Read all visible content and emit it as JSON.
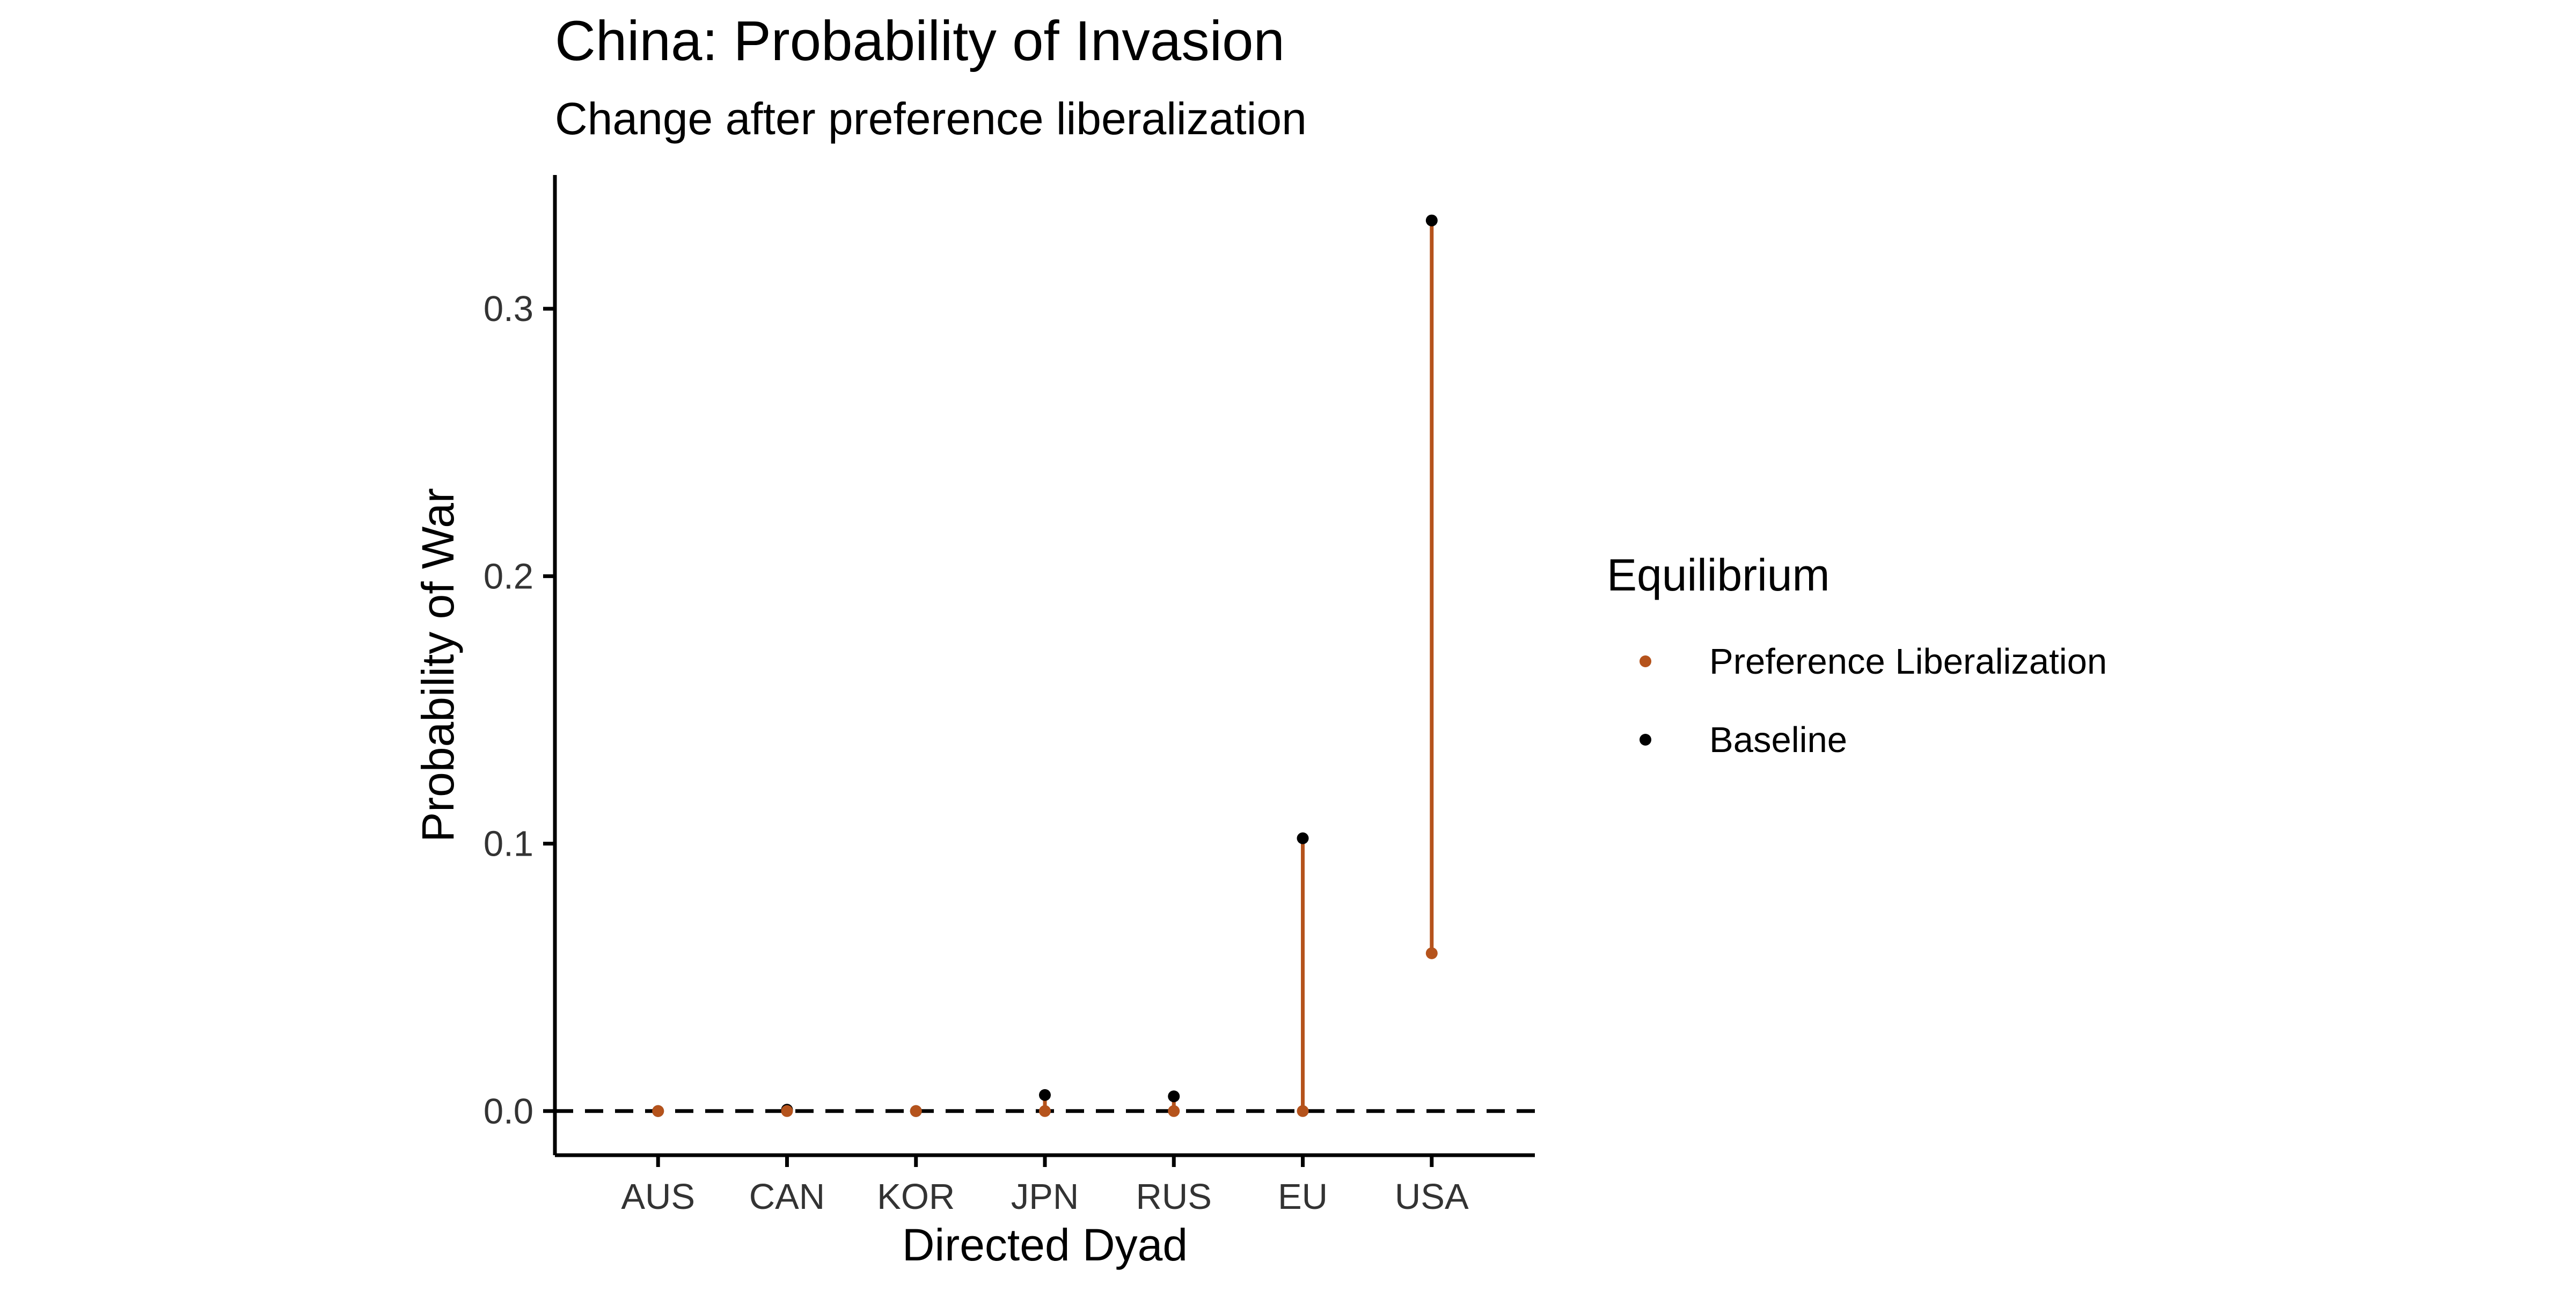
{
  "chart_data": {
    "type": "scatter",
    "title": "China: Probability of Invasion",
    "subtitle": "Change after preference liberalization",
    "xlabel": "Directed Dyad",
    "ylabel": "Probability of War",
    "categories": [
      "AUS",
      "CAN",
      "KOR",
      "JPN",
      "RUS",
      "EU",
      "USA"
    ],
    "ylim": [
      -0.0165,
      0.35
    ],
    "yticks": [
      0.0,
      0.1,
      0.2,
      0.3
    ],
    "ytick_labels": [
      "0.0",
      "0.1",
      "0.2",
      "0.3"
    ],
    "reference_line": {
      "y": 0,
      "style": "dashed",
      "color": "#000000"
    },
    "grid": false,
    "segments_color": "#b5531c",
    "series": [
      {
        "name": "Preference Liberalization",
        "color": "#b5531c",
        "values": [
          0.0,
          0.0,
          0.0,
          0.0,
          0.0,
          0.0,
          0.059
        ]
      },
      {
        "name": "Baseline",
        "color": "#000000",
        "values": [
          0.0,
          0.0005,
          0.0,
          0.006,
          0.0055,
          0.102,
          0.333
        ]
      }
    ],
    "legend": {
      "title": "Equilibrium",
      "position": "right",
      "entries": [
        "Preference Liberalization",
        "Baseline"
      ]
    }
  }
}
